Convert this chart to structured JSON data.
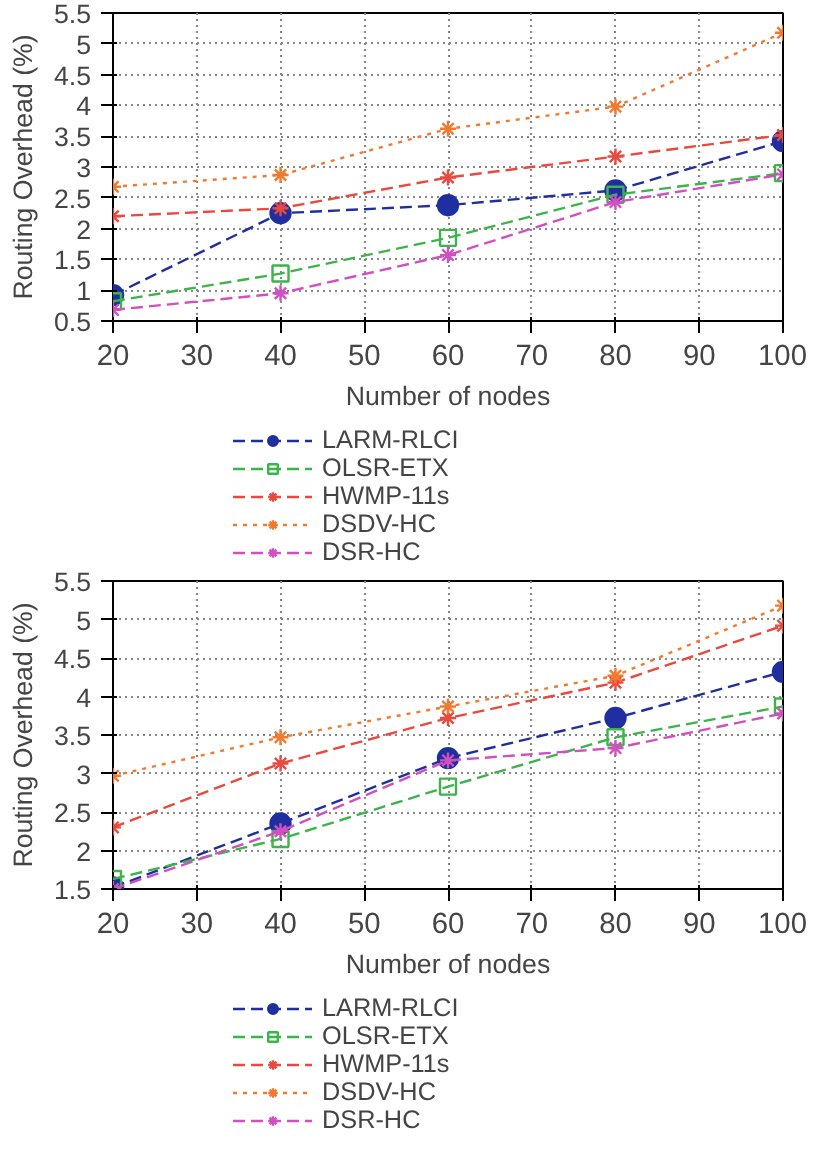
{
  "chart_data": [
    {
      "type": "line",
      "xlabel": "Number of nodes",
      "ylabel": "Routing Overhead (%)",
      "x": [
        20,
        40,
        60,
        80,
        100
      ],
      "xlim": [
        20,
        100
      ],
      "xticks": [
        20,
        30,
        40,
        50,
        60,
        70,
        80,
        90,
        100
      ],
      "ylim": [
        0.5,
        5.5
      ],
      "yticks": [
        0.5,
        1,
        1.5,
        2,
        2.5,
        3,
        3.5,
        4,
        4.5,
        5,
        5.5
      ],
      "grid": true,
      "legend": "bottom",
      "series": [
        {
          "name": "LARM-RLCI",
          "color": "#1f2f9f",
          "marker": "circle",
          "line_style": "dashed",
          "values": [
            0.92,
            2.25,
            2.38,
            2.62,
            3.42
          ]
        },
        {
          "name": "OLSR-ETX",
          "color": "#3cb44b",
          "marker": "square",
          "line_style": "dashed",
          "values": [
            0.82,
            1.27,
            1.85,
            2.55,
            2.9
          ]
        },
        {
          "name": "HWMP-11s",
          "color": "#e84a3f",
          "marker": "cross",
          "line_style": "dashed",
          "values": [
            2.2,
            2.33,
            2.83,
            3.17,
            3.52
          ]
        },
        {
          "name": "DSDV-HC",
          "color": "#f07a30",
          "marker": "cross",
          "line_style": "dotted",
          "values": [
            2.68,
            2.87,
            3.62,
            3.98,
            5.18
          ]
        },
        {
          "name": "DSR-HC",
          "color": "#d050c0",
          "marker": "cross",
          "line_style": "dashed",
          "values": [
            0.68,
            0.95,
            1.57,
            2.43,
            2.88
          ]
        }
      ]
    },
    {
      "type": "line",
      "xlabel": "Number of nodes",
      "ylabel": "Routing Overhead (%)",
      "x": [
        20,
        40,
        60,
        80,
        100
      ],
      "xlim": [
        20,
        100
      ],
      "xticks": [
        20,
        30,
        40,
        50,
        60,
        70,
        80,
        90,
        100
      ],
      "ylim": [
        1.5,
        5.5
      ],
      "yticks": [
        1.5,
        2,
        2.5,
        3,
        3.5,
        4,
        4.5,
        5,
        5.5
      ],
      "grid": true,
      "legend": "bottom",
      "series": [
        {
          "name": "LARM-RLCI",
          "color": "#1f2f9f",
          "marker": "circle",
          "line_style": "dashed",
          "values": [
            1.52,
            2.35,
            3.2,
            3.72,
            4.32
          ]
        },
        {
          "name": "OLSR-ETX",
          "color": "#3cb44b",
          "marker": "square",
          "line_style": "dashed",
          "values": [
            1.63,
            2.15,
            2.83,
            3.47,
            3.87
          ]
        },
        {
          "name": "HWMP-11s",
          "color": "#e84a3f",
          "marker": "cross",
          "line_style": "dashed",
          "values": [
            2.3,
            3.13,
            3.72,
            4.18,
            4.92
          ]
        },
        {
          "name": "DSDV-HC",
          "color": "#f07a30",
          "marker": "cross",
          "line_style": "dotted",
          "values": [
            2.97,
            3.47,
            3.87,
            4.27,
            5.18
          ]
        },
        {
          "name": "DSR-HC",
          "color": "#d050c0",
          "marker": "cross",
          "line_style": "dashed",
          "values": [
            1.5,
            2.25,
            3.17,
            3.33,
            3.78
          ]
        }
      ]
    }
  ]
}
